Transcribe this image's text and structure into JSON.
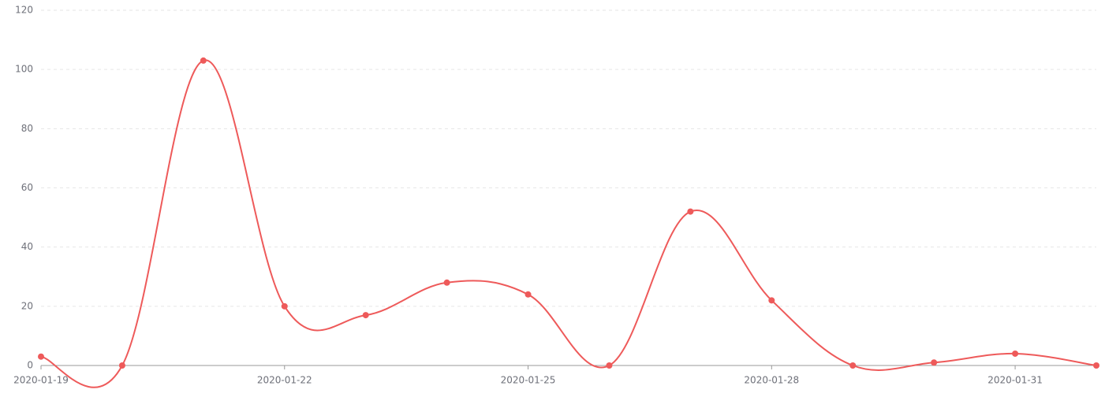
{
  "chart_data": {
    "type": "line",
    "categories": [
      "2020-01-19",
      null,
      null,
      "2020-01-22",
      null,
      null,
      "2020-01-25",
      null,
      null,
      "2020-01-28",
      null,
      null,
      "2020-01-31",
      null
    ],
    "series": [
      {
        "color": "#ee5a5a",
        "values": [
          3,
          0,
          103,
          20,
          17,
          28,
          24,
          0,
          52,
          22,
          0,
          1,
          4,
          0
        ]
      }
    ],
    "ylim": [
      0,
      120
    ],
    "yticks": [
      0,
      20,
      40,
      60,
      80,
      100,
      120
    ],
    "grid": true,
    "smooth": true
  }
}
